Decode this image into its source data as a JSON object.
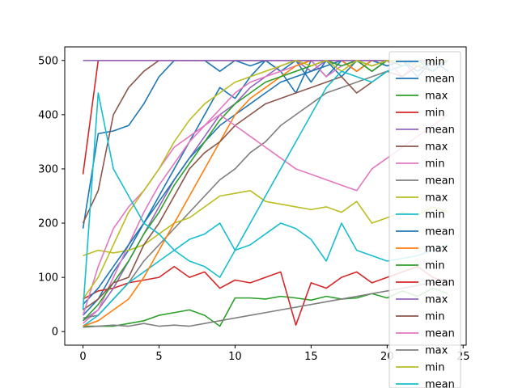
{
  "chart_data": {
    "type": "line",
    "title": "",
    "xlabel": "",
    "ylabel": "",
    "xlim": [
      -1.2,
      25.2
    ],
    "ylim": [
      -25,
      525
    ],
    "x_ticks": [
      0,
      5,
      10,
      15,
      20,
      25
    ],
    "y_ticks": [
      0,
      100,
      200,
      300,
      400,
      500
    ],
    "grid": false,
    "legend_position": "top-right",
    "palette": [
      "#1f77b4",
      "#ff7f0e",
      "#2ca02c",
      "#d62728",
      "#9467bd",
      "#8c564b",
      "#e377c2",
      "#7f7f7f",
      "#bcbd22",
      "#17becf"
    ],
    "legend": [
      {
        "name": "min",
        "color": "#1f77b4"
      },
      {
        "name": "mean",
        "color": "#1f77b4"
      },
      {
        "name": "max",
        "color": "#2ca02c"
      },
      {
        "name": "min",
        "color": "#d62728"
      },
      {
        "name": "mean",
        "color": "#9467bd"
      },
      {
        "name": "max",
        "color": "#8c564b"
      },
      {
        "name": "min",
        "color": "#e377c2"
      },
      {
        "name": "mean",
        "color": "#7f7f7f"
      },
      {
        "name": "max",
        "color": "#bcbd22"
      },
      {
        "name": "min",
        "color": "#17becf"
      },
      {
        "name": "mean",
        "color": "#1f77b4"
      },
      {
        "name": "max",
        "color": "#ff7f0e"
      },
      {
        "name": "min",
        "color": "#2ca02c"
      },
      {
        "name": "mean",
        "color": "#d62728"
      },
      {
        "name": "max",
        "color": "#9467bd"
      },
      {
        "name": "min",
        "color": "#8c564b"
      },
      {
        "name": "mean",
        "color": "#e377c2"
      },
      {
        "name": "max",
        "color": "#7f7f7f"
      },
      {
        "name": "min",
        "color": "#bcbd22"
      },
      {
        "name": "mean",
        "color": "#17becf"
      }
    ],
    "series": [
      {
        "color": "#1f77b4",
        "x": [
          0,
          1,
          2,
          3,
          4,
          5,
          6,
          7,
          8,
          9,
          10,
          11,
          12,
          13,
          14,
          15,
          16,
          17,
          18,
          19,
          20,
          21,
          22,
          23,
          24
        ],
        "y": [
          190,
          365,
          370,
          380,
          420,
          470,
          500,
          500,
          500,
          480,
          500,
          490,
          500,
          480,
          500,
          460,
          500,
          470,
          500,
          490,
          500,
          500,
          480,
          500,
          500
        ]
      },
      {
        "color": "#1f77b4",
        "x": [
          0,
          1,
          2,
          3,
          4,
          5,
          6,
          7,
          8,
          9,
          10,
          11,
          12,
          13,
          14,
          15,
          16,
          17,
          18,
          19,
          20,
          21,
          22,
          23,
          24
        ],
        "y": [
          30,
          60,
          110,
          150,
          200,
          250,
          300,
          350,
          400,
          450,
          430,
          470,
          500,
          480,
          440,
          500,
          470,
          500,
          480,
          500,
          490,
          500,
          470,
          500,
          480
        ]
      },
      {
        "color": "#2ca02c",
        "x": [
          0,
          1,
          2,
          3,
          4,
          5,
          6,
          7,
          8,
          9,
          10,
          11,
          12,
          13,
          14,
          15,
          16,
          17,
          18,
          19,
          20,
          21,
          22,
          23,
          24
        ],
        "y": [
          10,
          10,
          10,
          15,
          20,
          30,
          35,
          40,
          30,
          10,
          62,
          62,
          60,
          65,
          62,
          58,
          65,
          60,
          62,
          70,
          62,
          75,
          65,
          80,
          70
        ]
      },
      {
        "color": "#d62728",
        "x": [
          0,
          1,
          2,
          3,
          4,
          5,
          6,
          7,
          8,
          9,
          10,
          11,
          12,
          13,
          14,
          15,
          16,
          17,
          18,
          19,
          20,
          21,
          22,
          23,
          24
        ],
        "y": [
          60,
          75,
          80,
          90,
          95,
          100,
          120,
          100,
          110,
          80,
          95,
          90,
          100,
          110,
          12,
          90,
          80,
          100,
          110,
          90,
          100,
          110,
          120,
          100,
          90
        ]
      },
      {
        "color": "#9467bd",
        "x": [
          0,
          1,
          2,
          3,
          4,
          5,
          6,
          7,
          8,
          9,
          10,
          11,
          12,
          13,
          14,
          15,
          16,
          17,
          18,
          19,
          20,
          21,
          22,
          23,
          24
        ],
        "y": [
          20,
          40,
          80,
          130,
          180,
          230,
          280,
          320,
          360,
          400,
          420,
          450,
          470,
          490,
          500,
          480,
          500,
          490,
          500,
          480,
          500,
          500,
          500,
          480,
          500
        ]
      },
      {
        "color": "#8c564b",
        "x": [
          0,
          1,
          2,
          3,
          4,
          5,
          6,
          7,
          8,
          9,
          10,
          11,
          12,
          13,
          14,
          15,
          16,
          17,
          18,
          19,
          20,
          21,
          22,
          23,
          24
        ],
        "y": [
          200,
          260,
          400,
          450,
          480,
          500,
          500,
          500,
          500,
          500,
          500,
          500,
          500,
          500,
          500,
          500,
          500,
          500,
          500,
          500,
          500,
          500,
          500,
          500,
          500
        ]
      },
      {
        "color": "#e377c2",
        "x": [
          0,
          1,
          2,
          3,
          4,
          5,
          6,
          7,
          8,
          9,
          10,
          11,
          12,
          13,
          14,
          15,
          16,
          17,
          18,
          19,
          20,
          21,
          22,
          23,
          24
        ],
        "y": [
          15,
          40,
          100,
          160,
          220,
          270,
          310,
          350,
          380,
          410,
          440,
          460,
          470,
          480,
          490,
          500,
          470,
          490,
          500,
          480,
          500,
          470,
          500,
          480,
          500
        ]
      },
      {
        "color": "#7f7f7f",
        "x": [
          0,
          1,
          2,
          3,
          4,
          5,
          6,
          7,
          8,
          9,
          10,
          11,
          12,
          13,
          14,
          15,
          16,
          17,
          18,
          19,
          20,
          21,
          22,
          23,
          24
        ],
        "y": [
          25,
          30,
          60,
          90,
          130,
          160,
          190,
          220,
          250,
          280,
          300,
          330,
          350,
          380,
          400,
          420,
          440,
          450,
          460,
          470,
          480,
          490,
          500,
          490,
          500
        ]
      },
      {
        "color": "#bcbd22",
        "x": [
          0,
          1,
          2,
          3,
          4,
          5,
          6,
          7,
          8,
          9,
          10,
          11,
          12,
          13,
          14,
          15,
          16,
          17,
          18,
          19,
          20,
          21,
          22,
          23,
          24
        ],
        "y": [
          140,
          150,
          145,
          150,
          160,
          180,
          200,
          210,
          230,
          250,
          255,
          260,
          240,
          235,
          230,
          225,
          230,
          220,
          240,
          200,
          210,
          220,
          215,
          230,
          220
        ]
      },
      {
        "color": "#17becf",
        "x": [
          0,
          1,
          2,
          3,
          4,
          5,
          6,
          7,
          8,
          9,
          10,
          11,
          12,
          13,
          14,
          15,
          16,
          17,
          18,
          19,
          20,
          21,
          22,
          23,
          24
        ],
        "y": [
          10,
          30,
          60,
          90,
          110,
          130,
          150,
          170,
          180,
          200,
          150,
          160,
          180,
          200,
          190,
          170,
          130,
          200,
          150,
          140,
          130,
          135,
          140,
          150,
          160
        ]
      },
      {
        "color": "#1f77b4",
        "x": [
          0,
          1,
          2,
          3,
          4,
          5,
          6,
          7,
          8,
          9,
          10,
          11,
          12,
          13,
          14,
          15,
          16,
          17,
          18,
          19,
          20,
          21,
          22,
          23,
          24
        ],
        "y": [
          50,
          80,
          120,
          160,
          200,
          240,
          280,
          320,
          350,
          380,
          400,
          420,
          440,
          460,
          470,
          480,
          490,
          500,
          480,
          500,
          490,
          500,
          500,
          480,
          500
        ]
      },
      {
        "color": "#ff7f0e",
        "x": [
          0,
          1,
          2,
          3,
          4,
          5,
          6,
          7,
          8,
          9,
          10,
          11,
          12,
          13,
          14,
          15,
          16,
          17,
          18,
          19,
          20,
          21,
          22,
          23,
          24
        ],
        "y": [
          10,
          20,
          40,
          60,
          100,
          150,
          200,
          250,
          300,
          350,
          400,
          430,
          450,
          470,
          490,
          500,
          500,
          500,
          480,
          500,
          500,
          490,
          500,
          500,
          500
        ]
      },
      {
        "color": "#2ca02c",
        "x": [
          0,
          1,
          2,
          3,
          4,
          5,
          6,
          7,
          8,
          9,
          10,
          11,
          12,
          13,
          14,
          15,
          16,
          17,
          18,
          19,
          20,
          21,
          22,
          23,
          24
        ],
        "y": [
          20,
          50,
          90,
          130,
          180,
          220,
          270,
          310,
          350,
          390,
          420,
          440,
          460,
          470,
          480,
          490,
          500,
          490,
          500,
          480,
          500,
          490,
          500,
          500,
          500
        ]
      },
      {
        "color": "#d62728",
        "x": [
          0,
          1,
          2,
          3,
          4,
          5,
          6,
          7,
          8,
          9,
          10,
          11,
          12,
          13,
          14,
          15,
          16,
          17,
          18,
          19,
          20,
          21,
          22,
          23,
          24
        ],
        "y": [
          290,
          500,
          500,
          500,
          500,
          500,
          500,
          500,
          500,
          500,
          500,
          500,
          500,
          500,
          500,
          500,
          500,
          500,
          500,
          500,
          500,
          500,
          500,
          500,
          500
        ]
      },
      {
        "color": "#9467bd",
        "x": [
          0,
          1,
          2,
          3,
          4,
          5,
          6,
          7,
          8,
          9,
          10,
          11,
          12,
          13,
          14,
          15,
          16,
          17,
          18,
          19,
          20,
          21,
          22,
          23,
          24
        ],
        "y": [
          500,
          500,
          500,
          500,
          500,
          500,
          500,
          500,
          500,
          500,
          500,
          500,
          500,
          500,
          500,
          500,
          500,
          500,
          500,
          500,
          500,
          500,
          500,
          500,
          500
        ]
      },
      {
        "color": "#8c564b",
        "x": [
          0,
          1,
          2,
          3,
          4,
          5,
          6,
          7,
          8,
          9,
          10,
          11,
          12,
          13,
          14,
          15,
          16,
          17,
          18,
          19,
          20,
          21,
          22,
          23,
          24
        ],
        "y": [
          40,
          60,
          90,
          100,
          160,
          200,
          250,
          300,
          330,
          350,
          380,
          400,
          420,
          430,
          440,
          450,
          460,
          470,
          440,
          460,
          480,
          470,
          490,
          480,
          500
        ]
      },
      {
        "color": "#e377c2",
        "x": [
          0,
          1,
          2,
          3,
          4,
          5,
          6,
          7,
          8,
          9,
          10,
          11,
          12,
          13,
          14,
          15,
          16,
          17,
          18,
          19,
          20,
          21,
          22,
          23,
          24
        ],
        "y": [
          30,
          120,
          190,
          230,
          260,
          300,
          340,
          360,
          380,
          400,
          380,
          360,
          340,
          320,
          300,
          290,
          280,
          270,
          260,
          300,
          320,
          340,
          360,
          380,
          400
        ]
      },
      {
        "color": "#7f7f7f",
        "x": [
          0,
          1,
          2,
          3,
          4,
          5,
          6,
          7,
          8,
          9,
          10,
          11,
          12,
          13,
          14,
          15,
          16,
          17,
          18,
          19,
          20,
          21,
          22,
          23,
          24
        ],
        "y": [
          8,
          10,
          12,
          10,
          15,
          10,
          12,
          10,
          15,
          20,
          25,
          30,
          35,
          40,
          45,
          50,
          55,
          60,
          65,
          70,
          75,
          80,
          85,
          90,
          95
        ]
      },
      {
        "color": "#bcbd22",
        "x": [
          0,
          1,
          2,
          3,
          4,
          5,
          6,
          7,
          8,
          9,
          10,
          11,
          12,
          13,
          14,
          15,
          16,
          17,
          18,
          19,
          20,
          21,
          22,
          23,
          24
        ],
        "y": [
          60,
          100,
          160,
          220,
          260,
          300,
          350,
          390,
          420,
          440,
          460,
          470,
          480,
          490,
          500,
          490,
          500,
          480,
          500,
          490,
          500,
          500,
          490,
          500,
          500
        ]
      },
      {
        "color": "#17becf",
        "x": [
          0,
          1,
          2,
          3,
          4,
          5,
          6,
          7,
          8,
          9,
          10,
          11,
          12,
          13,
          14,
          15,
          16,
          17,
          18,
          19,
          20,
          21,
          22,
          23,
          24
        ],
        "y": [
          40,
          440,
          300,
          250,
          200,
          180,
          150,
          130,
          120,
          100,
          150,
          200,
          250,
          300,
          350,
          400,
          450,
          480,
          470,
          460,
          480,
          490,
          500,
          480,
          500
        ]
      }
    ]
  }
}
